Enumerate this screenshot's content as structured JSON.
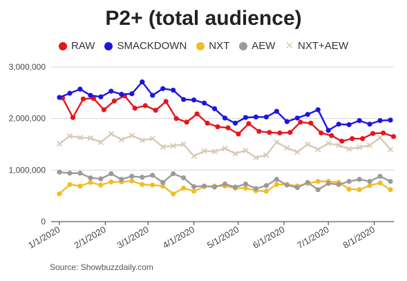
{
  "chart_data": {
    "type": "line",
    "title": "P2+ (total audience)",
    "source": "Source: Showbuzzdaily.com",
    "ylim": [
      0,
      3000000
    ],
    "yticks": [
      0,
      1000000,
      2000000,
      3000000
    ],
    "ytick_labels": [
      "0",
      "1,000,000",
      "2,000,000",
      "3,000,000"
    ],
    "xtick_labels": [
      "1/1/2020",
      "2/1/2020",
      "3/1/2020",
      "4/1/2020",
      "5/1/2020",
      "6/1/2020",
      "7/1/2020",
      "8/1/2020"
    ],
    "xticks_index": [
      0,
      4.43,
      8.57,
      13,
      17.29,
      21.71,
      26,
      30.43
    ],
    "grid": true,
    "legend_position": "top",
    "series": [
      {
        "name": "RAW",
        "color": "#e8141a",
        "marker": "circle",
        "start": 0.3,
        "values": [
          2400000,
          2020000,
          2380000,
          2390000,
          2170000,
          2340000,
          2440000,
          2200000,
          2250000,
          2160000,
          2330000,
          2000000,
          1930000,
          2090000,
          1910000,
          1840000,
          1820000,
          1700000,
          1900000,
          1750000,
          1730000,
          1720000,
          1730000,
          1930000,
          1910000,
          1720000,
          1670000,
          1560000,
          1610000,
          1610000,
          1710000,
          1720000,
          1650000
        ]
      },
      {
        "name": "SMACKDOWN",
        "color": "#1c14e0",
        "marker": "circle",
        "start": 0,
        "values": [
          2410000,
          2490000,
          2570000,
          2450000,
          2420000,
          2530000,
          2470000,
          2480000,
          2710000,
          2450000,
          2580000,
          2550000,
          2370000,
          2360000,
          2300000,
          2190000,
          2010000,
          1910000,
          2020000,
          2030000,
          2030000,
          2140000,
          1940000,
          2010000,
          2080000,
          2170000,
          1770000,
          1890000,
          1880000,
          1960000,
          1890000,
          1960000,
          1970000
        ]
      },
      {
        "name": "NXT",
        "color": "#f2bc26",
        "marker": "circle",
        "start": 0,
        "values": [
          540000,
          720000,
          690000,
          760000,
          710000,
          770000,
          770000,
          790000,
          720000,
          710000,
          690000,
          540000,
          650000,
          590000,
          680000,
          690000,
          690000,
          650000,
          650000,
          600000,
          590000,
          720000,
          720000,
          690000,
          740000,
          780000,
          780000,
          760000,
          630000,
          620000,
          700000,
          750000,
          620000
        ]
      },
      {
        "name": "AEW",
        "color": "#9a9a9a",
        "marker": "circle",
        "start": 0,
        "values": [
          960000,
          940000,
          940000,
          850000,
          830000,
          930000,
          820000,
          880000,
          860000,
          900000,
          760000,
          930000,
          850000,
          680000,
          690000,
          670000,
          730000,
          670000,
          730000,
          640000,
          700000,
          820000,
          710000,
          660000,
          760000,
          620000,
          740000,
          720000,
          780000,
          820000,
          780000,
          880000,
          780000
        ]
      },
      {
        "name": "NXT+AEW",
        "color": "#d9c8b4",
        "marker": "x",
        "start": 0,
        "values": [
          1510000,
          1660000,
          1630000,
          1620000,
          1540000,
          1700000,
          1590000,
          1670000,
          1580000,
          1610000,
          1450000,
          1470000,
          1500000,
          1270000,
          1370000,
          1360000,
          1420000,
          1320000,
          1380000,
          1240000,
          1290000,
          1540000,
          1430000,
          1350000,
          1500000,
          1400000,
          1520000,
          1480000,
          1410000,
          1440000,
          1480000,
          1630000,
          1400000
        ]
      }
    ]
  }
}
